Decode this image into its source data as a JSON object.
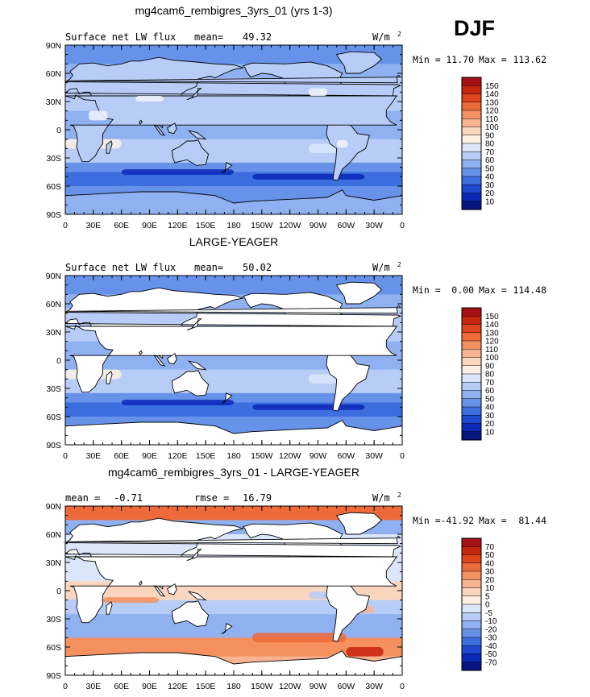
{
  "season": "DJF",
  "chart_data": [
    {
      "type": "heatmap",
      "title": "mg4cam6_rembigres_3yrs_01 (yrs 1-3)",
      "left_label": "Surface net LW flux",
      "stat_label": "mean=",
      "stat_value": "49.32",
      "units": "W/m",
      "units_sup": "2",
      "min_label": "Min =",
      "min_value": "11.70",
      "max_label": "Max =",
      "max_value": "113.62",
      "xlabels": [
        "0",
        "30E",
        "60E",
        "90E",
        "120E",
        "150E",
        "180",
        "150W",
        "120W",
        "90W",
        "60W",
        "30W",
        "0"
      ],
      "ylabels": [
        "90N",
        "60N",
        "30N",
        "0",
        "30S",
        "60S",
        "90S"
      ],
      "colorbar_levels": [
        "150",
        "140",
        "130",
        "120",
        "110",
        "100",
        "90",
        "80",
        "70",
        "60",
        "50",
        "40",
        "30",
        "20",
        "10"
      ],
      "colorbar_colors": [
        "#a50f15",
        "#c8250f",
        "#e0441c",
        "#ef6a3a",
        "#f5905f",
        "#f9b393",
        "#fbd6bf",
        "#fdf0e3",
        "#dbe6fb",
        "#b7cdf7",
        "#8fb1f1",
        "#6692ea",
        "#3d6ee0",
        "#1c48d2",
        "#0b28b7",
        "#06157f"
      ],
      "field": "absolute"
    },
    {
      "type": "heatmap",
      "title": "LARGE-YEAGER",
      "left_label": "Surface net LW flux",
      "stat_label": "mean=",
      "stat_value": "50.02",
      "units": "W/m",
      "units_sup": "2",
      "min_label": "Min =",
      "min_value": "0.00",
      "max_label": "Max =",
      "max_value": "114.48",
      "xlabels": [
        "0",
        "30E",
        "60E",
        "90E",
        "120E",
        "150E",
        "180",
        "150W",
        "120W",
        "90W",
        "60W",
        "30W",
        "0"
      ],
      "ylabels": [
        "90N",
        "60N",
        "30N",
        "0",
        "30S",
        "60S",
        "90S"
      ],
      "colorbar_levels": [
        "150",
        "140",
        "130",
        "120",
        "110",
        "100",
        "90",
        "80",
        "70",
        "60",
        "50",
        "40",
        "30",
        "20",
        "10"
      ],
      "colorbar_colors": [
        "#a50f15",
        "#c8250f",
        "#e0441c",
        "#ef6a3a",
        "#f5905f",
        "#f9b393",
        "#fbd6bf",
        "#fdf0e3",
        "#dbe6fb",
        "#b7cdf7",
        "#8fb1f1",
        "#6692ea",
        "#3d6ee0",
        "#1c48d2",
        "#0b28b7",
        "#06157f"
      ],
      "field": "ocean"
    },
    {
      "type": "heatmap",
      "title": "mg4cam6_rembigres_3yrs_01 - LARGE-YEAGER",
      "left_label": "mean =",
      "left_value": "-0.71",
      "stat_label": "rmse =",
      "stat_value": "16.79",
      "units": "W/m",
      "units_sup": "2",
      "min_label": "Min =",
      "min_value": "-41.92",
      "max_label": "Max =",
      "max_value": "81.44",
      "xlabels": [
        "0",
        "30E",
        "60E",
        "90E",
        "120E",
        "150E",
        "180",
        "150W",
        "120W",
        "90W",
        "60W",
        "30W",
        "0"
      ],
      "ylabels": [
        "90N",
        "60N",
        "30N",
        "0",
        "30S",
        "60S",
        "90S"
      ],
      "colorbar_levels": [
        "70",
        "50",
        "40",
        "30",
        "20",
        "10",
        "5",
        "0",
        "-5",
        "-10",
        "-20",
        "-30",
        "-40",
        "-50",
        "-70"
      ],
      "colorbar_colors": [
        "#a50f15",
        "#c8250f",
        "#e0441c",
        "#ef6a3a",
        "#f5905f",
        "#f9b393",
        "#fbd6bf",
        "#fdf0e3",
        "#dbe6fb",
        "#b7cdf7",
        "#8fb1f1",
        "#6692ea",
        "#3d6ee0",
        "#1c48d2",
        "#0b28b7",
        "#06157f"
      ],
      "field": "difference"
    }
  ]
}
